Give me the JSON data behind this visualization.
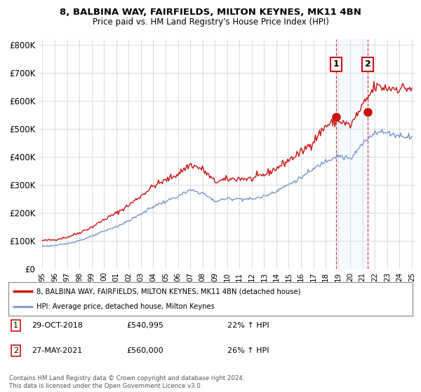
{
  "title_line1": "8, BALBINA WAY, FAIRFIELDS, MILTON KEYNES, MK11 4BN",
  "title_line2": "Price paid vs. HM Land Registry's House Price Index (HPI)",
  "background_color": "#ffffff",
  "plot_bg_color": "#ffffff",
  "grid_color": "#cccccc",
  "purchase1": {
    "label": "1",
    "date": "29-OCT-2018",
    "price": 540995,
    "pct": "22% ↑ HPI",
    "x": 2018.83
  },
  "purchase2": {
    "label": "2",
    "date": "27-MAY-2021",
    "price": 560000,
    "pct": "26% ↑ HPI",
    "x": 2021.42
  },
  "legend_line1": "8, BALBINA WAY, FAIRFIELDS, MILTON KEYNES, MK11 4BN (detached house)",
  "legend_line2": "HPI: Average price, detached house, Milton Keynes",
  "footer": "Contains HM Land Registry data © Crown copyright and database right 2024.\nThis data is licensed under the Open Government Licence v3.0.",
  "hpi_color": "#7799cc",
  "price_color": "#cc1111",
  "shade_color": "#ddeeff",
  "ylim": [
    0,
    820000
  ],
  "yticks": [
    0,
    100000,
    200000,
    300000,
    400000,
    500000,
    600000,
    700000,
    800000
  ],
  "ytick_labels": [
    "£0",
    "£100K",
    "£200K",
    "£300K",
    "£400K",
    "£500K",
    "£600K",
    "£700K",
    "£800K"
  ],
  "xlim_left": 1994.7,
  "xlim_right": 2025.3
}
